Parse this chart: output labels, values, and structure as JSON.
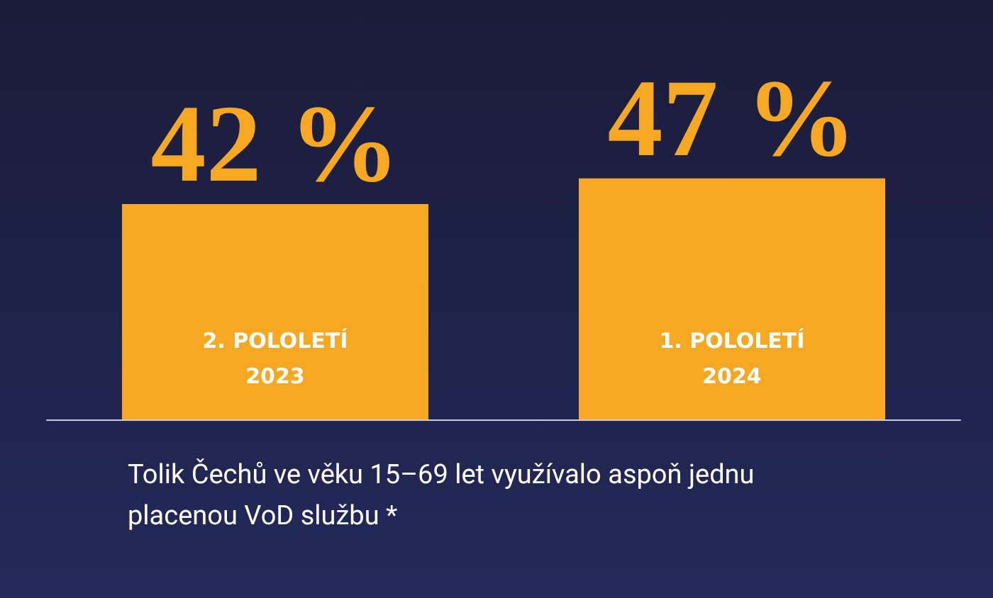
{
  "chart_data": {
    "type": "bar",
    "categories": [
      "2. POLOLETÍ\n2023",
      "1. POLOLETÍ\n2024"
    ],
    "values": [
      42,
      47
    ],
    "color": "#f6a823",
    "value_labels": [
      "42 %",
      "47 %"
    ],
    "annotations": [
      "Tolik Čechů ve věku 15–69 let využívalo aspoň jednu placenou VoD službu *"
    ],
    "legend": false
  }
}
